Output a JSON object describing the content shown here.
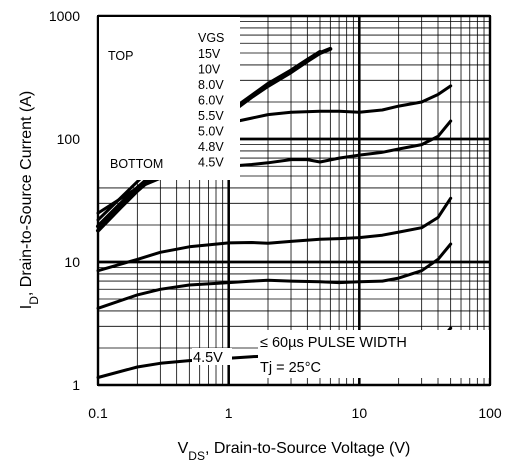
{
  "chart_data": {
    "type": "line",
    "xscale": "log",
    "yscale": "log",
    "xlim": [
      0.1,
      100
    ],
    "ylim": [
      1,
      1000
    ],
    "grid": true,
    "xlabel_main": "V",
    "xlabel_sub": "DS",
    "xlabel_rest": ", Drain-to-Source Voltage (V)",
    "ylabel_main": "I",
    "ylabel_sub": "D",
    "ylabel_rest": ", Drain-to-Source Current (A)",
    "xticks": [
      {
        "value": 0.1,
        "label": "0.1"
      },
      {
        "value": 1,
        "label": "1"
      },
      {
        "value": 10,
        "label": "10"
      },
      {
        "value": 100,
        "label": "100"
      }
    ],
    "yticks": [
      {
        "value": 1,
        "label": "1"
      },
      {
        "value": 10,
        "label": "10"
      },
      {
        "value": 100,
        "label": "100"
      },
      {
        "value": 1000,
        "label": "1000"
      }
    ],
    "legend": {
      "header": "VGS",
      "top_label": "TOP",
      "bottom_label": "BOTTOM",
      "entries": [
        "15V",
        "10V",
        "8.0V",
        "6.0V",
        "5.5V",
        "5.0V",
        "4.8V",
        "4.5V"
      ]
    },
    "annotations": {
      "pulse_width": "≤ 60µs PULSE WIDTH",
      "temperature": "Tj = 25°C",
      "curve_label": "4.5V"
    },
    "series": [
      {
        "x": [
          0.1,
          0.15,
          0.2,
          0.3,
          0.5,
          0.7,
          1,
          1.5,
          2,
          3,
          4,
          5,
          6
        ],
        "y": [
          18,
          28,
          38,
          55,
          85,
          115,
          160,
          220,
          270,
          350,
          430,
          500,
          540
        ]
      },
      {
        "x": [
          0.1,
          0.15,
          0.2,
          0.3,
          0.5,
          0.7,
          1,
          1.5,
          2,
          3,
          4,
          5
        ],
        "y": [
          19.5,
          30,
          40,
          58,
          90,
          120,
          165,
          225,
          280,
          360,
          440,
          510
        ]
      },
      {
        "x": [
          0.1,
          0.2,
          0.3,
          0.5,
          0.7,
          1,
          1.5,
          2,
          3,
          5,
          7,
          10,
          15,
          20,
          30,
          40,
          50
        ],
        "y": [
          22,
          45,
          68,
          95,
          115,
          135,
          148,
          158,
          165,
          168,
          168,
          165,
          172,
          185,
          200,
          230,
          270
        ]
      },
      {
        "x": [
          0.1,
          0.2,
          0.3,
          0.5,
          0.7,
          1,
          1.5,
          2,
          3,
          4,
          5,
          7,
          10,
          15,
          20,
          30,
          40,
          50
        ],
        "y": [
          25,
          40,
          48,
          56,
          59,
          60,
          62,
          64,
          68,
          68,
          65,
          70,
          74,
          78,
          83,
          90,
          105,
          140
        ]
      },
      {
        "x": [
          0.1,
          0.2,
          0.3,
          0.5,
          1,
          1.5,
          2,
          3,
          5,
          7,
          10,
          15,
          20,
          30,
          40,
          50
        ],
        "y": [
          8.5,
          10.5,
          12,
          13.3,
          14.3,
          14.4,
          14.2,
          14.7,
          15.3,
          15.5,
          15.8,
          16.5,
          17.5,
          19,
          23,
          33
        ]
      },
      {
        "x": [
          0.1,
          0.2,
          0.3,
          0.5,
          1,
          1.5,
          2,
          3,
          5,
          7,
          10,
          15,
          20,
          30,
          40,
          50
        ],
        "y": [
          4.2,
          5.4,
          6,
          6.5,
          6.8,
          7,
          7.1,
          7,
          6.9,
          6.8,
          6.9,
          7,
          7.4,
          8.5,
          10.5,
          14
        ]
      },
      {
        "x": [
          0.1,
          0.2,
          0.3,
          0.5,
          1,
          1.5,
          2,
          3,
          5,
          7,
          10,
          15,
          20,
          30,
          40,
          50
        ],
        "y": [
          1.15,
          1.4,
          1.5,
          1.58,
          1.65,
          1.7,
          1.72,
          1.74,
          1.72,
          1.7,
          1.72,
          1.75,
          1.8,
          1.9,
          2.2,
          2.9
        ]
      }
    ]
  }
}
